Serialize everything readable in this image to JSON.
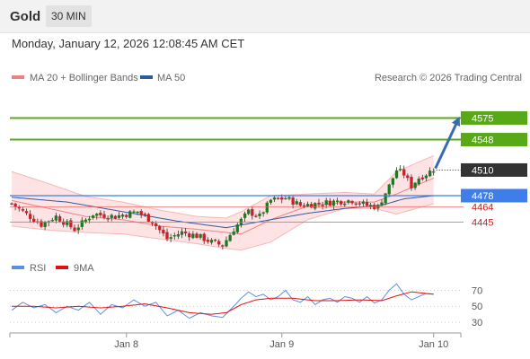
{
  "header": {
    "title": "Gold",
    "timeframe": "30 MIN"
  },
  "timestamp": "Monday, January 12, 2026 12:08:45 AM CET",
  "copyright": "Research © 2026 Trading Central",
  "colors": {
    "candle_up": "#1e7a1e",
    "candle_down": "#c8202a",
    "bb": "#f7b6b6",
    "ma20": "#f08080",
    "ma50": "#2e5aa0",
    "target": "#58a818",
    "pivot": "#3f7ee8",
    "support": "#f06060",
    "rsi": "#5b8ee6",
    "rsi_ma": "#e01010",
    "last": "#333333",
    "arrow": "#3a6ab0"
  },
  "chart_data": [
    {
      "type": "candlestick",
      "title": "Gold",
      "legend": [
        {
          "name": "MA 20 + Bollinger Bands",
          "color": "#f08080"
        },
        {
          "name": "MA 50",
          "color": "#2e5aa0"
        }
      ],
      "legend_position": "top-left",
      "x_ticks": [
        {
          "label": "Jan 8",
          "bar": 31
        },
        {
          "label": "Jan 9",
          "bar": 73
        },
        {
          "label": "Jan 10",
          "bar": 114
        }
      ],
      "ylim": [
        4404,
        4617
      ],
      "levels": [
        {
          "value": 4575,
          "label": "4575",
          "kind": "target"
        },
        {
          "value": 4548,
          "label": "4548",
          "kind": "target"
        },
        {
          "value": 4510,
          "label": "4510",
          "kind": "last"
        },
        {
          "value": 4478,
          "label": "4478",
          "kind": "pivot"
        },
        {
          "value": 4464,
          "label": "4464",
          "kind": "support"
        },
        {
          "value": 4445,
          "label": "4445",
          "kind": "support"
        }
      ],
      "arrow": {
        "from_bar": 114,
        "from_value": 4512,
        "to_value": 4575
      },
      "ohlc_anchors": [
        [
          0,
          4468
        ],
        [
          4,
          4455
        ],
        [
          8,
          4442
        ],
        [
          12,
          4452
        ],
        [
          17,
          4436
        ],
        [
          22,
          4455
        ],
        [
          28,
          4452
        ],
        [
          34,
          4458
        ],
        [
          38,
          4446
        ],
        [
          42,
          4424
        ],
        [
          46,
          4432
        ],
        [
          50,
          4428
        ],
        [
          54,
          4420
        ],
        [
          57,
          4416
        ],
        [
          60,
          4436
        ],
        [
          64,
          4458
        ],
        [
          67,
          4452
        ],
        [
          70,
          4472
        ],
        [
          74,
          4475
        ],
        [
          78,
          4466
        ],
        [
          83,
          4468
        ],
        [
          88,
          4471
        ],
        [
          92,
          4472
        ],
        [
          96,
          4466
        ],
        [
          99,
          4464
        ],
        [
          102,
          4490
        ],
        [
          104,
          4510
        ],
        [
          106,
          4505
        ],
        [
          108,
          4490
        ],
        [
          110,
          4500
        ],
        [
          112,
          4505
        ],
        [
          114,
          4511
        ]
      ],
      "bollinger": {
        "upper": [
          [
            0,
            4508
          ],
          [
            10,
            4493
          ],
          [
            20,
            4477
          ],
          [
            30,
            4470
          ],
          [
            40,
            4460
          ],
          [
            50,
            4452
          ],
          [
            58,
            4450
          ],
          [
            62,
            4458
          ],
          [
            70,
            4478
          ],
          [
            80,
            4480
          ],
          [
            90,
            4482
          ],
          [
            98,
            4480
          ],
          [
            104,
            4508
          ],
          [
            114,
            4528
          ]
        ],
        "middle": [
          [
            0,
            4472
          ],
          [
            10,
            4462
          ],
          [
            20,
            4452
          ],
          [
            30,
            4448
          ],
          [
            40,
            4440
          ],
          [
            50,
            4436
          ],
          [
            58,
            4432
          ],
          [
            62,
            4430
          ],
          [
            70,
            4448
          ],
          [
            80,
            4465
          ],
          [
            90,
            4470
          ],
          [
            98,
            4470
          ],
          [
            104,
            4480
          ],
          [
            114,
            4500
          ]
        ],
        "lower": [
          [
            0,
            4440
          ],
          [
            10,
            4435
          ],
          [
            20,
            4432
          ],
          [
            30,
            4430
          ],
          [
            40,
            4424
          ],
          [
            50,
            4418
          ],
          [
            58,
            4412
          ],
          [
            62,
            4410
          ],
          [
            70,
            4420
          ],
          [
            80,
            4448
          ],
          [
            90,
            4462
          ],
          [
            98,
            4462
          ],
          [
            104,
            4455
          ],
          [
            114,
            4468
          ]
        ]
      },
      "ma50": [
        [
          0,
          4476
        ],
        [
          15,
          4470
        ],
        [
          30,
          4458
        ],
        [
          45,
          4446
        ],
        [
          58,
          4438
        ],
        [
          70,
          4448
        ],
        [
          80,
          4456
        ],
        [
          90,
          4462
        ],
        [
          100,
          4466
        ],
        [
          106,
          4474
        ],
        [
          114,
          4478
        ]
      ]
    },
    {
      "type": "line",
      "legend": [
        {
          "name": "RSI",
          "color": "#5b8ee6"
        },
        {
          "name": "9MA",
          "color": "#e01010"
        }
      ],
      "ylim": [
        20,
        85
      ],
      "y_ticks": [
        70,
        50,
        30
      ],
      "series": [
        {
          "name": "RSI",
          "values": [
            [
              0,
              45
            ],
            [
              3,
              55
            ],
            [
              6,
              48
            ],
            [
              9,
              52
            ],
            [
              12,
              42
            ],
            [
              15,
              50
            ],
            [
              18,
              45
            ],
            [
              21,
              55
            ],
            [
              24,
              40
            ],
            [
              27,
              52
            ],
            [
              30,
              48
            ],
            [
              33,
              58
            ],
            [
              36,
              50
            ],
            [
              39,
              55
            ],
            [
              42,
              38
            ],
            [
              45,
              45
            ],
            [
              48,
              35
            ],
            [
              51,
              42
            ],
            [
              54,
              38
            ],
            [
              57,
              36
            ],
            [
              60,
              50
            ],
            [
              62,
              60
            ],
            [
              64,
              68
            ],
            [
              66,
              62
            ],
            [
              68,
              65
            ],
            [
              70,
              58
            ],
            [
              72,
              62
            ],
            [
              74,
              70
            ],
            [
              76,
              58
            ],
            [
              78,
              55
            ],
            [
              80,
              62
            ],
            [
              82,
              52
            ],
            [
              84,
              58
            ],
            [
              86,
              60
            ],
            [
              88,
              55
            ],
            [
              90,
              62
            ],
            [
              92,
              60
            ],
            [
              94,
              55
            ],
            [
              96,
              62
            ],
            [
              98,
              54
            ],
            [
              100,
              58
            ],
            [
              102,
              70
            ],
            [
              104,
              78
            ],
            [
              106,
              65
            ],
            [
              108,
              58
            ],
            [
              110,
              62
            ],
            [
              112,
              66
            ],
            [
              114,
              65
            ]
          ]
        },
        {
          "name": "9MA",
          "values": [
            [
              0,
              50
            ],
            [
              6,
              50
            ],
            [
              12,
              48
            ],
            [
              18,
              50
            ],
            [
              24,
              48
            ],
            [
              30,
              50
            ],
            [
              36,
              53
            ],
            [
              42,
              48
            ],
            [
              48,
              42
            ],
            [
              54,
              40
            ],
            [
              58,
              42
            ],
            [
              62,
              52
            ],
            [
              66,
              58
            ],
            [
              70,
              60
            ],
            [
              76,
              60
            ],
            [
              82,
              57
            ],
            [
              88,
              57
            ],
            [
              94,
              58
            ],
            [
              100,
              57
            ],
            [
              104,
              63
            ],
            [
              108,
              68
            ],
            [
              112,
              66
            ],
            [
              114,
              65
            ]
          ]
        }
      ]
    }
  ]
}
